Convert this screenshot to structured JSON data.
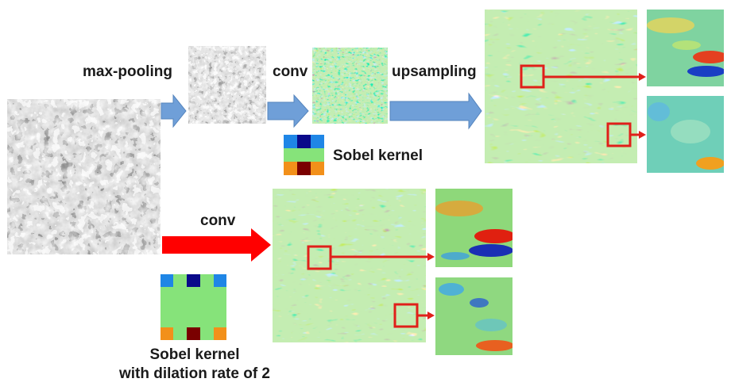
{
  "labels": {
    "max_pooling": "max-pooling",
    "conv_top": "conv",
    "upsampling": "upsampling",
    "sobel_kernel": "Sobel kernel",
    "conv_bottom": "conv",
    "dilated_caption_line1": "Sobel kernel",
    "dilated_caption_line2": "with dilation rate of 2"
  },
  "colors": {
    "blue_arrow": "#6f9fd8",
    "red_arrow": "#ff0000",
    "highlight_box": "#e0201a",
    "feature_bg": "#87d66f",
    "kernel_blue": "#1f86e6",
    "kernel_navy": "#0a0a8a",
    "kernel_green": "#86e37a",
    "kernel_orange": "#f2901a",
    "kernel_darkred": "#7a0000"
  }
}
